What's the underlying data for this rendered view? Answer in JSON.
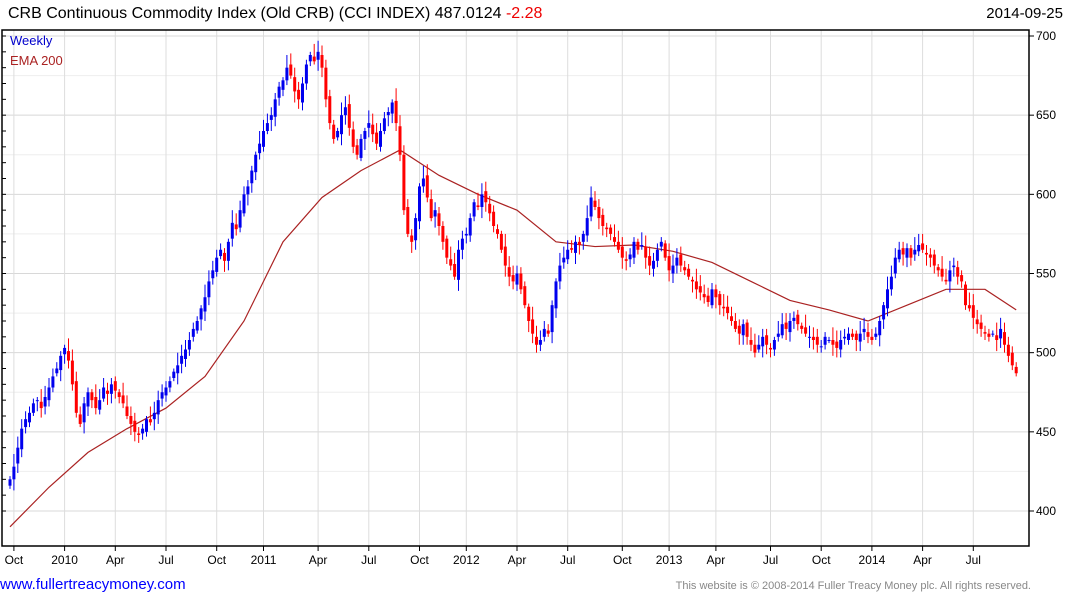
{
  "header": {
    "title": "CRB Continuous Commodity Index (Old CRB) (CCI INDEX) 487.0124",
    "change": "-2.28",
    "date": "2014-09-25"
  },
  "footer": {
    "site_link": "www.fullertreacymoney.com",
    "copyright": "This website is © 2008-2014 Fuller Treacy Money plc. All rights reserved."
  },
  "colors": {
    "up": "#0000ee",
    "down": "#ff0000",
    "ema": "#aa2222",
    "grid": "#dddddd"
  },
  "chart_data": {
    "type": "candlestick",
    "title": "CRB Continuous Commodity Index (Old CRB) (CCI INDEX)",
    "legend": [
      {
        "label": "Weekly",
        "color": "#0000cc"
      },
      {
        "label": "EMA 200",
        "color": "#aa2222"
      }
    ],
    "legend_position": "top-left",
    "ylim": [
      380,
      705
    ],
    "y_ticks": [
      400,
      450,
      500,
      550,
      600,
      650,
      700
    ],
    "x_ticks": [
      "Oct",
      "2010",
      "Apr",
      "Jul",
      "Oct",
      "2011",
      "Apr",
      "Jul",
      "Oct",
      "2012",
      "Apr",
      "Jul",
      "Oct",
      "2013",
      "Apr",
      "Jul",
      "Oct",
      "2014",
      "Apr",
      "Jul"
    ],
    "x_tick_weeks": [
      1,
      14,
      27,
      40,
      53,
      65,
      79,
      92,
      105,
      117,
      130,
      143,
      157,
      169,
      181,
      195,
      208,
      221,
      234,
      247
    ],
    "grid": true,
    "weekly_close": [
      420,
      428,
      440,
      452,
      458,
      462,
      468,
      470,
      465,
      472,
      478,
      485,
      490,
      498,
      503,
      495,
      480,
      462,
      455,
      468,
      475,
      470,
      465,
      470,
      478,
      474,
      480,
      476,
      472,
      468,
      460,
      455,
      450,
      448,
      452,
      458,
      456,
      462,
      470,
      475,
      478,
      482,
      488,
      492,
      498,
      502,
      508,
      515,
      520,
      528,
      535,
      545,
      552,
      560,
      565,
      558,
      570,
      582,
      578,
      590,
      600,
      605,
      615,
      625,
      632,
      640,
      645,
      650,
      660,
      668,
      672,
      680,
      675,
      665,
      660,
      670,
      682,
      688,
      684,
      690,
      680,
      660,
      645,
      635,
      640,
      650,
      655,
      642,
      630,
      625,
      635,
      640,
      645,
      638,
      632,
      640,
      648,
      652,
      658,
      645,
      625,
      590,
      575,
      570,
      585,
      605,
      610,
      598,
      585,
      590,
      580,
      570,
      560,
      555,
      548,
      565,
      572,
      575,
      585,
      595,
      592,
      600,
      595,
      588,
      580,
      575,
      565,
      555,
      548,
      545,
      550,
      540,
      530,
      520,
      512,
      505,
      508,
      515,
      512,
      530,
      545,
      555,
      560,
      565,
      565,
      570,
      568,
      575,
      585,
      598,
      592,
      585,
      580,
      578,
      575,
      570,
      565,
      560,
      558,
      562,
      570,
      565,
      568,
      560,
      555,
      558,
      565,
      570,
      560,
      552,
      555,
      560,
      555,
      552,
      548,
      545,
      540,
      538,
      535,
      532,
      540,
      535,
      530,
      528,
      525,
      520,
      515,
      512,
      518,
      510,
      505,
      500,
      505,
      510,
      505,
      502,
      508,
      512,
      518,
      515,
      520,
      522,
      518,
      515,
      512,
      510,
      508,
      505,
      504,
      510,
      508,
      505,
      503,
      508,
      510,
      512,
      510,
      508,
      512,
      515,
      510,
      508,
      512,
      520,
      530,
      540,
      548,
      560,
      565,
      562,
      566,
      560,
      565,
      568,
      565,
      562,
      560,
      555,
      552,
      548,
      545,
      552,
      555,
      548,
      545,
      530,
      528,
      522,
      518,
      515,
      512,
      510,
      512,
      508,
      515,
      505,
      498,
      492,
      487
    ],
    "ema200_every_10_weeks": [
      390,
      415,
      437,
      452,
      465,
      485,
      520,
      570,
      598,
      615,
      628,
      612,
      600,
      590,
      570,
      567,
      568,
      564,
      557,
      545,
      533,
      527,
      520,
      530,
      540,
      540,
      527
    ]
  }
}
